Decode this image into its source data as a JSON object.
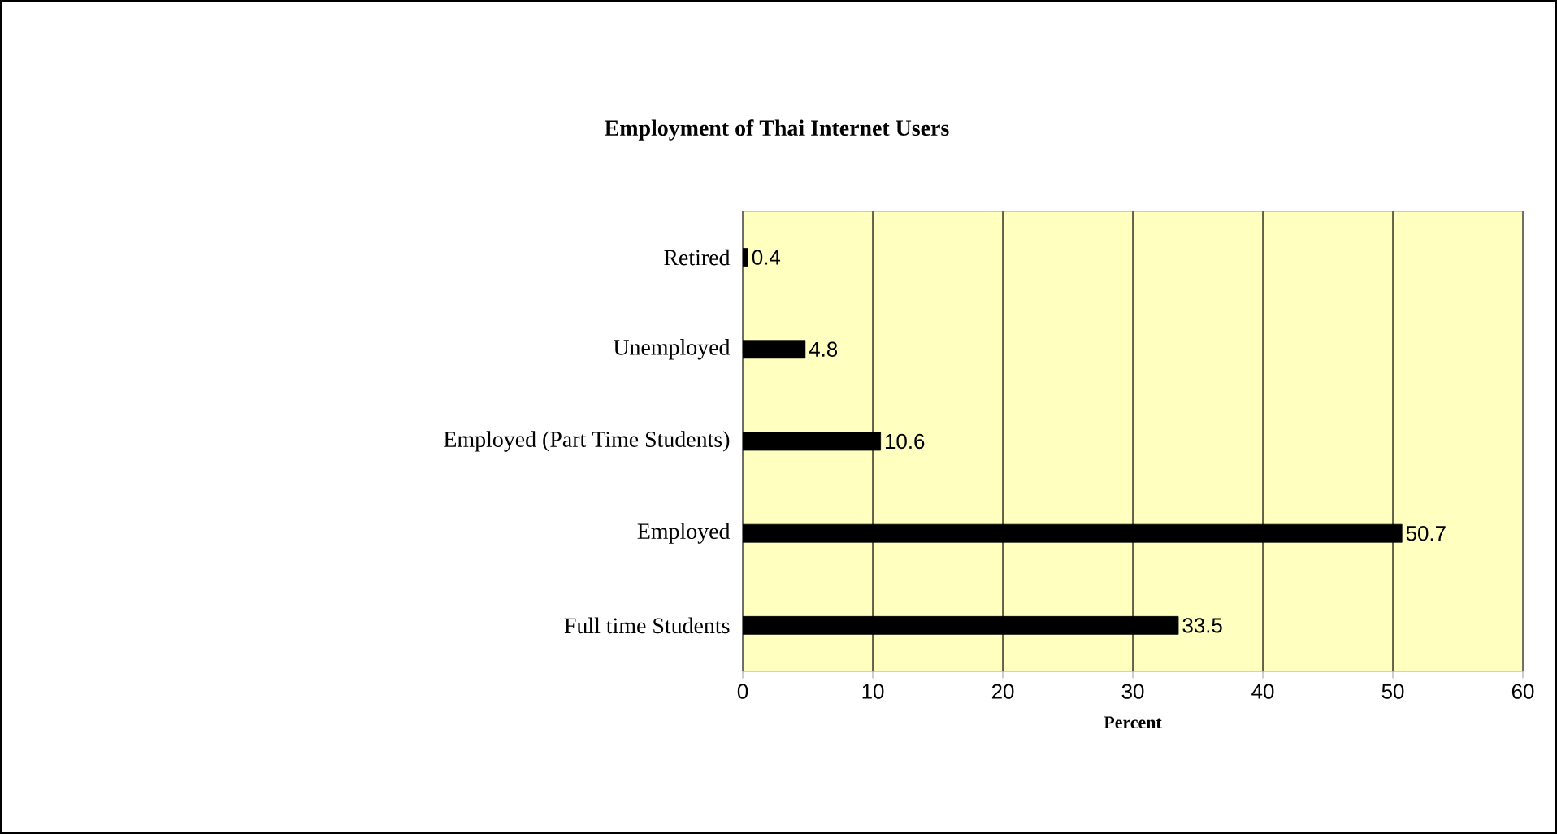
{
  "chart_data": {
    "type": "bar",
    "orientation": "horizontal",
    "title": "Employment of Thai Internet Users",
    "xlabel": "Percent",
    "categories": [
      "Retired",
      "Unemployed",
      "Employed (Part Time Students)",
      "Employed",
      "Full time Students"
    ],
    "values": [
      0.4,
      4.8,
      10.6,
      50.7,
      33.5
    ],
    "color": "#000000",
    "xlim": [
      0,
      60
    ],
    "xticks": [
      0,
      10,
      20,
      30,
      40,
      50,
      60
    ],
    "grid": "x",
    "data_labels": true
  }
}
